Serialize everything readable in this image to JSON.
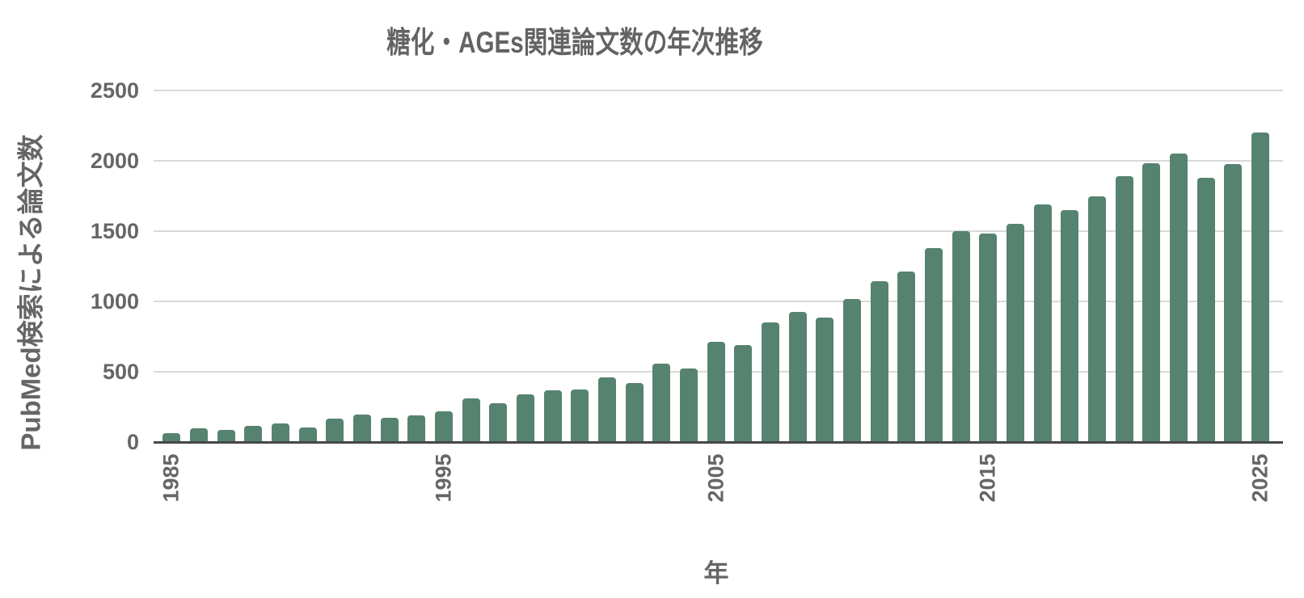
{
  "chart_data": {
    "type": "bar",
    "title": "糖化・AGEs関連論文数の年次推移",
    "xlabel": "年",
    "ylabel": "PubMed検索による論文数",
    "categories": [
      1985,
      1986,
      1987,
      1988,
      1989,
      1990,
      1991,
      1992,
      1993,
      1994,
      1995,
      1996,
      1997,
      1998,
      1999,
      2000,
      2001,
      2002,
      2003,
      2004,
      2005,
      2006,
      2007,
      2008,
      2009,
      2010,
      2011,
      2012,
      2013,
      2014,
      2015,
      2016,
      2017,
      2018,
      2019,
      2020,
      2021,
      2022,
      2023,
      2024,
      2025
    ],
    "values": [
      65,
      100,
      85,
      115,
      135,
      105,
      165,
      195,
      175,
      190,
      220,
      310,
      275,
      340,
      370,
      375,
      460,
      420,
      555,
      525,
      710,
      690,
      850,
      925,
      885,
      1015,
      1145,
      1215,
      1380,
      1500,
      1480,
      1550,
      1690,
      1650,
      1750,
      1890,
      1985,
      2050,
      1880,
      1975,
      2200
    ],
    "ylim": [
      0,
      2500
    ],
    "y_ticks": [
      0,
      500,
      1000,
      1500,
      2000,
      2500
    ],
    "x_tick_labels": [
      "1985",
      "1995",
      "2005",
      "2015",
      "2025"
    ],
    "x_tick_indices": [
      0,
      10,
      20,
      30,
      40
    ],
    "grid": "horizontal-only",
    "legend": "none",
    "bar_color": "#56836F",
    "label_color": "#666666",
    "gridline_color": "#d9d9d9",
    "axis_line_color": "#474747",
    "background_color": "#ffffff"
  }
}
